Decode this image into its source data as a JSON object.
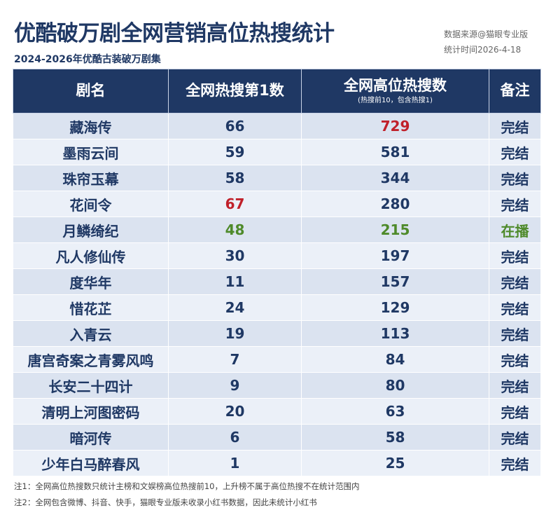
{
  "header": {
    "title": "优酷破万剧全网营销高位热搜统计",
    "subtitle": "2024-2026年优酷古装破万剧集",
    "source": "数据来源@猫眼专业版",
    "date": "统计时间2026-4-18"
  },
  "table": {
    "columns": [
      "剧名",
      "全网热搜第1数",
      "全网高位热搜数",
      "备注"
    ],
    "column_note": "(热搜前10，包含热搜1)",
    "rows": [
      [
        "藏海传",
        66,
        729,
        "完结"
      ],
      [
        "墨雨云间",
        59,
        581,
        "完结"
      ],
      [
        "珠帘玉幕",
        58,
        344,
        "完结"
      ],
      [
        "花间令",
        67,
        280,
        "完结"
      ],
      [
        "月鳞绮纪",
        48,
        215,
        "在播"
      ],
      [
        "凡人修仙传",
        30,
        197,
        "完结"
      ],
      [
        "度华年",
        11,
        157,
        "完结"
      ],
      [
        "惜花芷",
        24,
        129,
        "完结"
      ],
      [
        "入青云",
        19,
        113,
        "完结"
      ],
      [
        "唐宫奇案之青雾风鸣",
        7,
        84,
        "完结"
      ],
      [
        "长安二十四计",
        9,
        80,
        "完结"
      ],
      [
        "清明上河图密码",
        20,
        63,
        "完结"
      ],
      [
        "暗河传",
        6,
        58,
        "完结"
      ],
      [
        "少年白马醉春风",
        1,
        25,
        "完结"
      ]
    ]
  },
  "notes": [
    "注1：全网高位热搜数只统计主榜和文娱榜高位热搜前10，上升榜不属于高位热搜不在统计范围内",
    "注2：全网包含微博、抖音、快手，猫眼专业版未收录小红书数据，因此未统计小红书"
  ]
}
